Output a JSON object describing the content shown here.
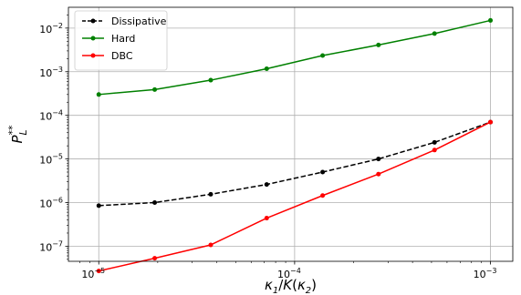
{
  "chart_data": {
    "type": "line",
    "title": "",
    "xlabel": "κ₁/K(κ₂)",
    "ylabel": "P_L**",
    "xscale": "log",
    "yscale": "log",
    "xlim": [
      7e-06,
      0.0013
    ],
    "ylim": [
      4.5e-08,
      0.03
    ],
    "grid": true,
    "legend_position": "top-left",
    "x_ticks": [
      {
        "value": 1e-05,
        "base": "10",
        "exp": "−5"
      },
      {
        "value": 0.0001,
        "base": "10",
        "exp": "−4"
      },
      {
        "value": 0.001,
        "base": "10",
        "exp": "−3"
      }
    ],
    "y_ticks": [
      {
        "value": 1e-07,
        "base": "10",
        "exp": "−7"
      },
      {
        "value": 1e-06,
        "base": "10",
        "exp": "−6"
      },
      {
        "value": 1e-05,
        "base": "10",
        "exp": "−5"
      },
      {
        "value": 0.0001,
        "base": "10",
        "exp": "−4"
      },
      {
        "value": 0.001,
        "base": "10",
        "exp": "−3"
      },
      {
        "value": 0.01,
        "base": "10",
        "exp": "−2"
      }
    ],
    "x": [
      1e-05,
      1.93e-05,
      3.73e-05,
      7.2e-05,
      0.000139,
      0.000268,
      0.000518,
      0.001
    ],
    "series": [
      {
        "name": "Dissipative",
        "color": "#000000",
        "dashed": true,
        "values": [
          8.5e-07,
          1e-06,
          1.55e-06,
          2.6e-06,
          5e-06,
          1e-05,
          2.4e-05,
          7e-05
        ]
      },
      {
        "name": "Hard",
        "color": "#008000",
        "dashed": false,
        "values": [
          0.0003,
          0.00039,
          0.00064,
          0.00117,
          0.00235,
          0.0041,
          0.0075,
          0.015
        ]
      },
      {
        "name": "DBC",
        "color": "#ff0000",
        "dashed": false,
        "values": [
          2.7e-08,
          5.3e-08,
          1.07e-07,
          4.4e-07,
          1.45e-06,
          4.5e-06,
          1.6e-05,
          7e-05
        ]
      }
    ]
  }
}
